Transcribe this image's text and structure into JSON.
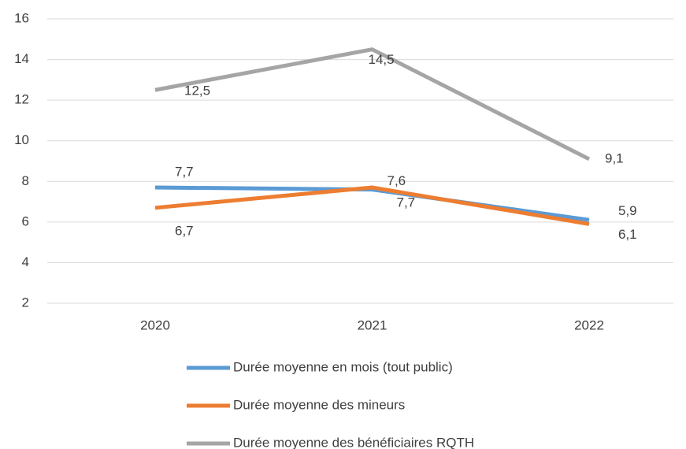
{
  "chart_data": {
    "type": "line",
    "categories": [
      "2020",
      "2021",
      "2022"
    ],
    "series": [
      {
        "name": "Durée moyenne en mois (tout public)",
        "color": "#5b9bd5",
        "values": [
          7.7,
          7.6,
          6.1
        ],
        "value_labels": [
          "7,7",
          "7,6",
          "6,1"
        ]
      },
      {
        "name": "Durée moyenne des mineurs",
        "color": "#ed7d31",
        "values": [
          6.7,
          7.7,
          5.9
        ],
        "value_labels": [
          "6,7",
          "7,7",
          "5,9"
        ]
      },
      {
        "name": "Durée moyenne des bénéficiaires RQTH",
        "color": "#a5a5a5",
        "values": [
          12.5,
          14.5,
          9.1
        ],
        "value_labels": [
          "12,5",
          "14,5",
          "9,1"
        ]
      }
    ],
    "ylim": [
      2,
      16
    ],
    "yticks": [
      2,
      4,
      6,
      8,
      10,
      12,
      14,
      16
    ],
    "grid": true,
    "legend": "bottom"
  }
}
